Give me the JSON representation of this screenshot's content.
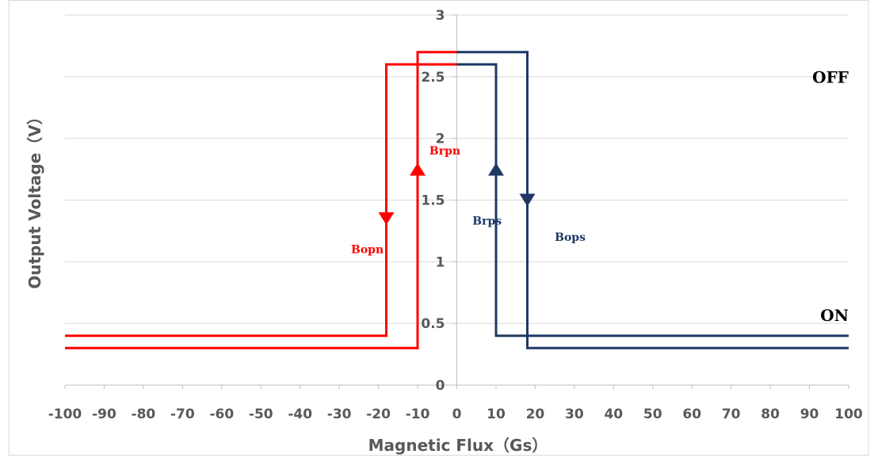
{
  "chart_data": {
    "type": "line",
    "xlabel": "Magnetic Flux（Gs）",
    "ylabel": "Output Voltage（V）",
    "xlim": [
      -100,
      100
    ],
    "ylim": [
      0,
      3
    ],
    "x_ticks": [
      -100,
      -90,
      -80,
      -70,
      -60,
      -50,
      -40,
      -30,
      -20,
      -10,
      0,
      10,
      20,
      30,
      40,
      50,
      60,
      70,
      80,
      90,
      100
    ],
    "y_ticks": [
      0,
      0.5,
      1,
      1.5,
      2,
      2.5,
      3
    ],
    "grid": true,
    "series": [
      {
        "color": "#ff0000",
        "x": [
          -100,
          -18,
          -18,
          0
        ],
        "y": [
          0.4,
          0.4,
          2.6,
          2.6
        ]
      },
      {
        "color": "#ff0000",
        "x": [
          -100,
          -10,
          -10,
          0
        ],
        "y": [
          0.3,
          0.3,
          2.7,
          2.7
        ]
      },
      {
        "color": "#1f3864",
        "x": [
          0,
          10,
          10,
          100
        ],
        "y": [
          2.6,
          2.6,
          0.4,
          0.4
        ]
      },
      {
        "color": "#1f3864",
        "x": [
          0,
          18,
          18,
          100
        ],
        "y": [
          2.7,
          2.7,
          0.3,
          0.3
        ]
      }
    ],
    "arrows": [
      {
        "x": -18,
        "y": 1.35,
        "direction": "down",
        "color": "#ff0000"
      },
      {
        "x": -10,
        "y": 1.75,
        "direction": "up",
        "color": "#ff0000"
      },
      {
        "x": 10,
        "y": 1.75,
        "direction": "up",
        "color": "#1f3864"
      },
      {
        "x": 18,
        "y": 1.5,
        "direction": "down",
        "color": "#1f3864"
      }
    ],
    "annotations": [
      {
        "text": "Bopn",
        "x": -27,
        "y": 1.07,
        "color": "#ff0000"
      },
      {
        "text": "Brpn",
        "x": -7,
        "y": 1.87,
        "color": "#ff0000"
      },
      {
        "text": "Brps",
        "x": 4,
        "y": 1.3,
        "color": "#1f3864"
      },
      {
        "text": "Bops",
        "x": 25,
        "y": 1.17,
        "color": "#1f3864"
      },
      {
        "text": "OFF",
        "x": 100,
        "y": 2.45,
        "color": "#000000"
      },
      {
        "text": "ON",
        "x": 100,
        "y": 0.52,
        "color": "#000000"
      }
    ]
  }
}
